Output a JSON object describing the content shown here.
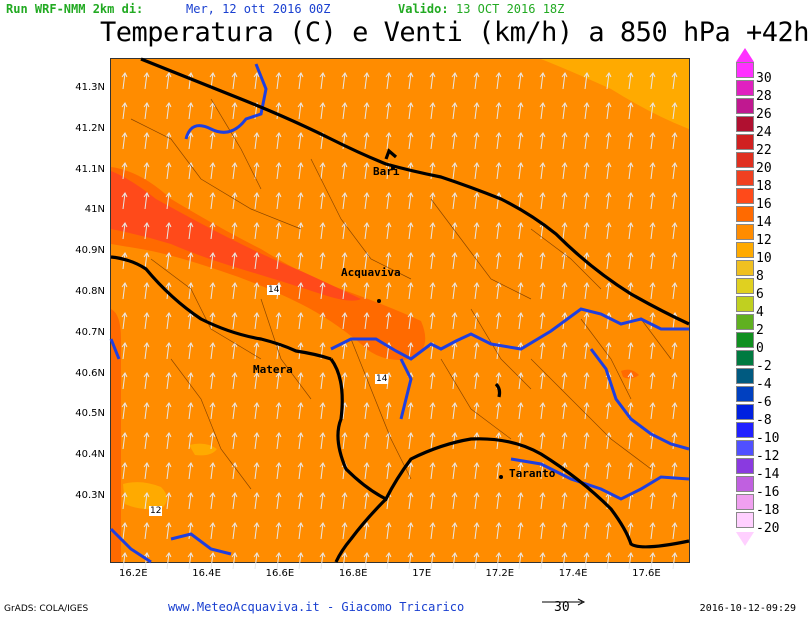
{
  "header": {
    "run_label": "Run WRF-NMM 2km di:",
    "run_date": "Mer, 12 ott 2016 00Z",
    "valid_label": "Valido:",
    "valid_date": "13 OCT 2016 18Z"
  },
  "title": "Temperatura (C) e Venti (km/h) a 850 hPa +42h",
  "map": {
    "y_ticks": [
      "41.3N",
      "41.2N",
      "41.1N",
      "41N",
      "40.9N",
      "40.8N",
      "40.7N",
      "40.6N",
      "40.5N",
      "40.4N",
      "40.3N"
    ],
    "x_ticks": [
      "16.2E",
      "16.4E",
      "16.6E",
      "16.8E",
      "17E",
      "17.2E",
      "17.4E",
      "17.6E"
    ],
    "cities": [
      "Bari",
      "Acquaviva",
      "Matera",
      "Taranto"
    ],
    "contour_labels": [
      "14",
      "14",
      "12"
    ],
    "colors": {
      "t12": "#ff8c00",
      "t14": "#ff6a00",
      "t16": "#ff4a1a",
      "t10": "#ffaa00",
      "t8": "#f0c020",
      "land_border": "#000000",
      "region_border": "#1f3fe0",
      "wind": "#d8d8d8"
    }
  },
  "legend": {
    "levels": [
      {
        "label": "30",
        "color": "#ff30ff"
      },
      {
        "label": "28",
        "color": "#e020c0"
      },
      {
        "label": "26",
        "color": "#c01890"
      },
      {
        "label": "24",
        "color": "#b01030"
      },
      {
        "label": "22",
        "color": "#d02020"
      },
      {
        "label": "20",
        "color": "#e03020"
      },
      {
        "label": "18",
        "color": "#f04020"
      },
      {
        "label": "16",
        "color": "#ff4a1a"
      },
      {
        "label": "14",
        "color": "#ff6a00"
      },
      {
        "label": "12",
        "color": "#ff8c00"
      },
      {
        "label": "10",
        "color": "#ffaa00"
      },
      {
        "label": "8",
        "color": "#f0c020"
      },
      {
        "label": "6",
        "color": "#e0d020"
      },
      {
        "label": "4",
        "color": "#c0d020"
      },
      {
        "label": "2",
        "color": "#60b020"
      },
      {
        "label": "0",
        "color": "#109020"
      },
      {
        "label": "-2",
        "color": "#007a40"
      },
      {
        "label": "-4",
        "color": "#005a80"
      },
      {
        "label": "-6",
        "color": "#0040c0"
      },
      {
        "label": "-8",
        "color": "#0020e0"
      },
      {
        "label": "-10",
        "color": "#2020ff"
      },
      {
        "label": "-12",
        "color": "#5050ff"
      },
      {
        "label": "-14",
        "color": "#8a3ae0"
      },
      {
        "label": "-16",
        "color": "#c060e0"
      },
      {
        "label": "-18",
        "color": "#f0a0f0"
      },
      {
        "label": "-20",
        "color": "#ffd0ff"
      }
    ]
  },
  "footer": {
    "left": "GrADS: COLA/IGES",
    "site": "www.MeteoAcquaviva.it - Giacomo Tricarico",
    "ref_wind": "30",
    "right": "2016-10-12-09:29"
  }
}
